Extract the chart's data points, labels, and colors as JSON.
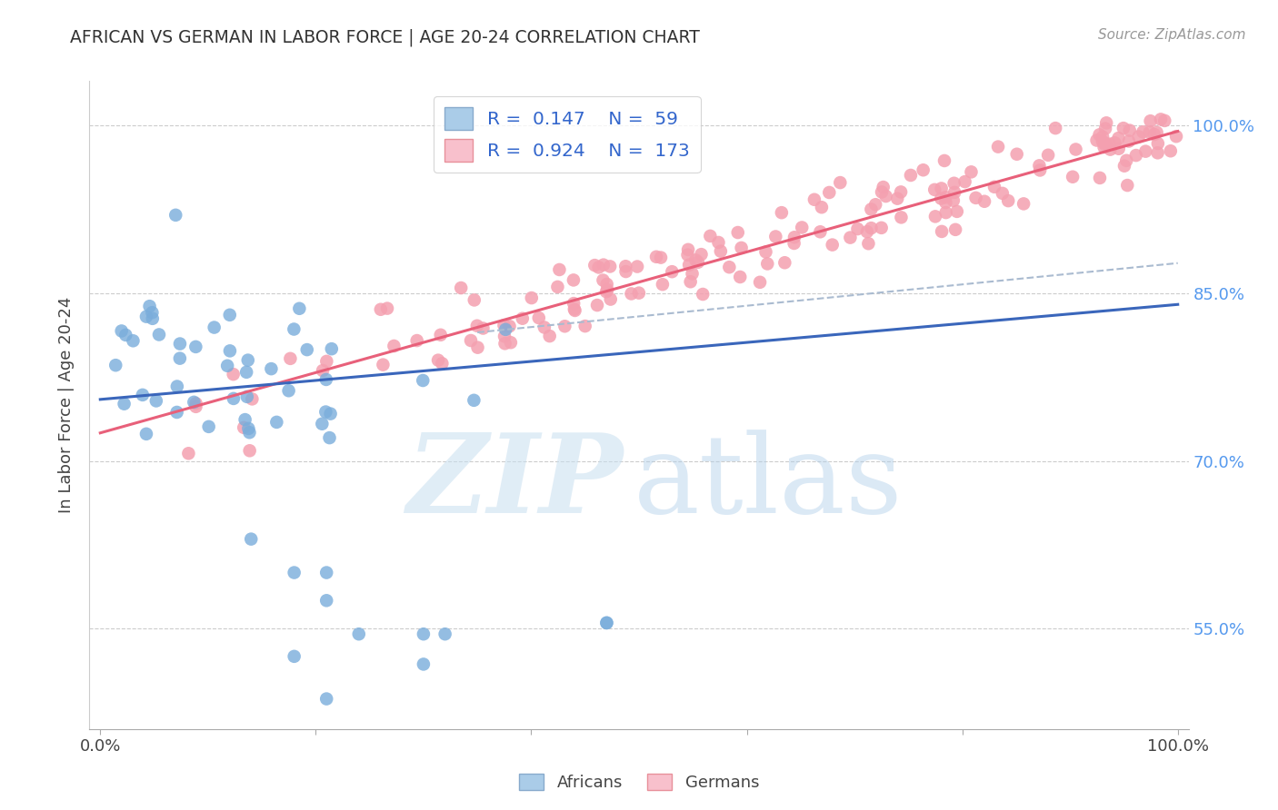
{
  "title": "AFRICAN VS GERMAN IN LABOR FORCE | AGE 20-24 CORRELATION CHART",
  "source": "Source: ZipAtlas.com",
  "ylabel": "In Labor Force | Age 20-24",
  "ytick_labels": [
    "55.0%",
    "70.0%",
    "85.0%",
    "100.0%"
  ],
  "ytick_values": [
    0.55,
    0.7,
    0.85,
    1.0
  ],
  "legend_africans": "Africans",
  "legend_germans": "Germans",
  "R_african": 0.147,
  "N_african": 59,
  "R_german": 0.924,
  "N_german": 173,
  "african_color": "#7AADDB",
  "german_color": "#F4A0B0",
  "african_line_color": "#3A66BB",
  "german_line_color": "#E8607A",
  "dashed_line_color": "#AABBD0",
  "background_color": "#FFFFFF",
  "grid_color": "#CCCCCC",
  "title_color": "#333333",
  "ytick_color": "#5599EE",
  "source_color": "#999999",
  "xlim": [
    -0.01,
    1.01
  ],
  "ylim": [
    0.46,
    1.04
  ],
  "african_seed": 42,
  "german_seed": 7
}
